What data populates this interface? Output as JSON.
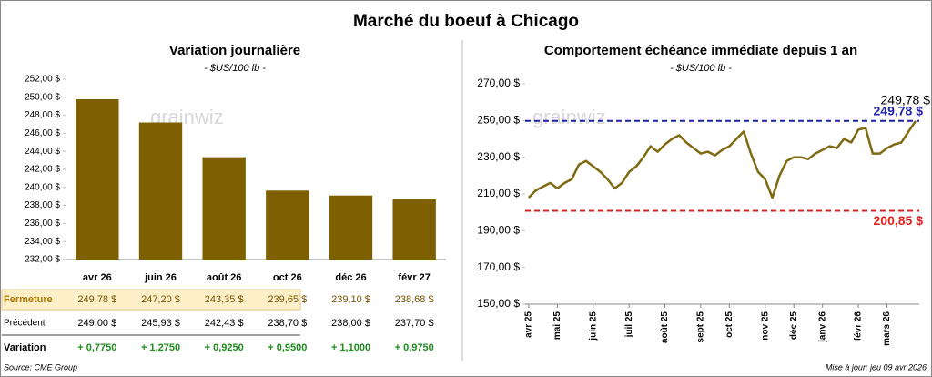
{
  "title": "Marché du boeuf à Chicago",
  "watermark": "grainwiz",
  "chart_data": [
    {
      "type": "bar",
      "title": "Variation journalière",
      "subtitle": "- $US/100 lb -",
      "categories": [
        "avr 26",
        "juin 26",
        "août 26",
        "oct 26",
        "déc 26",
        "févr 27"
      ],
      "values": [
        249.78,
        247.2,
        243.35,
        239.65,
        239.1,
        238.68
      ],
      "value_labels": [
        "249,78 $",
        "247,20 $",
        "243,35 $",
        "239,65 $",
        "239,10 $",
        "238,68 $"
      ],
      "color": "#7f6000",
      "ylim": [
        232,
        252
      ],
      "yticks": [
        {
          "value": 232,
          "label": "232,00 $"
        },
        {
          "value": 234,
          "label": "234,00 $"
        },
        {
          "value": 236,
          "label": "236,00 $"
        },
        {
          "value": 238,
          "label": "238,00 $"
        },
        {
          "value": 240,
          "label": "240,00 $"
        },
        {
          "value": 242,
          "label": "242,00 $"
        },
        {
          "value": 244,
          "label": "244,00 $"
        },
        {
          "value": 246,
          "label": "246,00 $"
        },
        {
          "value": 248,
          "label": "248,00 $"
        },
        {
          "value": 250,
          "label": "250,00 $"
        },
        {
          "value": 252,
          "label": "252,00 $"
        }
      ]
    },
    {
      "type": "line",
      "title": "Comportement  échéance immédiate depuis 1 an",
      "subtitle": "- $US/100 lb -",
      "categories": [
        "avr 25",
        null,
        null,
        null,
        "mai 25",
        null,
        null,
        null,
        null,
        "juin 25",
        null,
        null,
        null,
        null,
        "juil 25",
        null,
        null,
        null,
        null,
        "août 25",
        null,
        null,
        null,
        null,
        "sept 25",
        null,
        null,
        null,
        "oct 25",
        null,
        null,
        null,
        null,
        "nov 25",
        null,
        null,
        null,
        "déc 25",
        null,
        null,
        null,
        "janv 26",
        null,
        null,
        null,
        null,
        "févr 26",
        null,
        null,
        null,
        "mars 26",
        null,
        null,
        null,
        null
      ],
      "values": [
        208,
        212,
        214,
        216,
        213,
        216,
        218,
        226,
        228,
        225,
        222,
        218,
        213,
        216,
        222,
        225,
        230,
        236,
        233,
        237,
        240,
        242,
        238,
        235,
        232,
        233,
        231,
        234,
        236,
        240,
        244,
        232,
        222,
        218,
        208,
        220,
        228,
        230,
        230,
        229,
        232,
        234,
        236,
        235,
        240,
        238,
        245,
        246,
        232,
        232,
        235,
        237,
        238,
        244,
        249.78
      ],
      "end_label": "249,78 $",
      "color": "#7f6a12",
      "reference_lines": [
        {
          "value": 249.78,
          "label": "249,78 $",
          "color": "#1f1fa8"
        },
        {
          "value": 200.85,
          "label": "200,85 $",
          "color": "#e02020"
        }
      ],
      "ylim": [
        150,
        270
      ],
      "yticks": [
        {
          "value": 150,
          "label": "150,00 $"
        },
        {
          "value": 170,
          "label": "170,00 $"
        },
        {
          "value": 190,
          "label": "190,00 $"
        },
        {
          "value": 210,
          "label": "210,00 $"
        },
        {
          "value": 230,
          "label": "230,00 $"
        },
        {
          "value": 250,
          "label": "250,00 $"
        },
        {
          "value": 270,
          "label": "270,00 $"
        }
      ]
    }
  ],
  "table": {
    "closing_label": "Fermeture",
    "rows": [
      {
        "label": "Précédent",
        "values": [
          "249,00 $",
          "245,93 $",
          "242,43 $",
          "238,70 $",
          "238,00 $",
          "237,70 $"
        ]
      },
      {
        "label": "Variation",
        "values": [
          "+ 0,7750",
          "+ 1,2750",
          "+ 0,9250",
          "+ 0,9500",
          "+ 1,1000",
          "+ 0,9750"
        ]
      }
    ]
  },
  "source": "Source: CME Group",
  "updated": "Mise à jour: jeu 09 avr 2026"
}
